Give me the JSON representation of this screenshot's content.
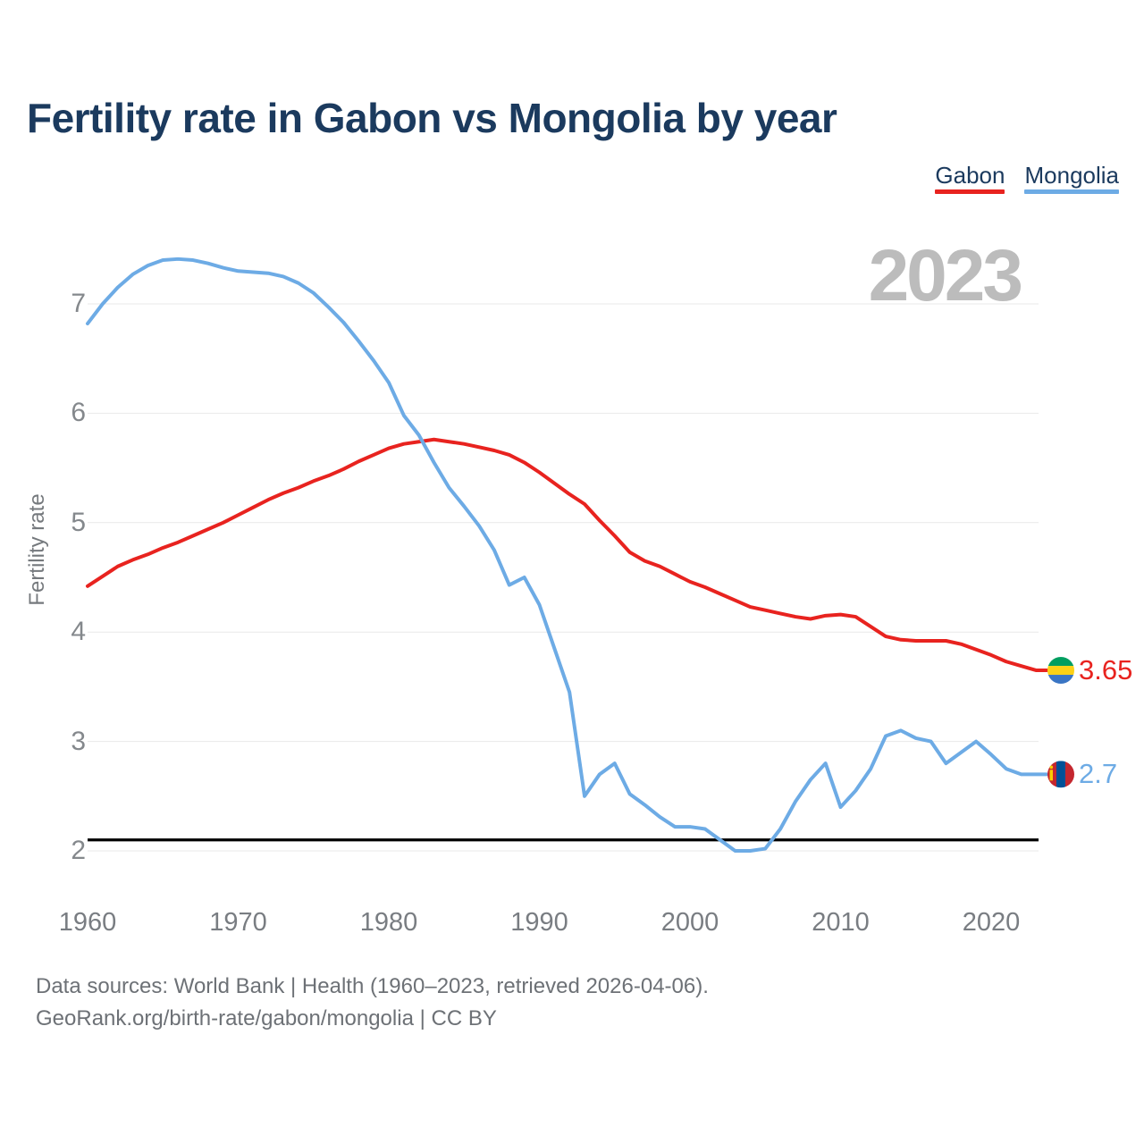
{
  "title": "Fertility rate in Gabon vs Mongolia by year",
  "watermark": "2023",
  "legend": {
    "items": [
      {
        "label": "Gabon",
        "color": "#e8231f"
      },
      {
        "label": "Mongolia",
        "color": "#6dabe5"
      }
    ]
  },
  "y_axis": {
    "label": "Fertility rate",
    "ticks": [
      7,
      6,
      5,
      4,
      3,
      2
    ]
  },
  "x_axis": {
    "ticks": [
      1960,
      1970,
      1980,
      1990,
      2000,
      2010,
      2020
    ]
  },
  "reference_line": {
    "value": 2.1,
    "color": "#000000"
  },
  "end_labels": {
    "gabon": "3.65",
    "mongolia": "2.7"
  },
  "flags": {
    "gabon": {
      "green": "#009e60",
      "yellow": "#fcd116",
      "blue": "#3a75c4"
    },
    "mongolia": {
      "red": "#c4272f",
      "blue": "#015197",
      "soyombo": "#f9cf02"
    }
  },
  "footer": {
    "line1": "Data sources: World Bank | Health (1960–2023, retrieved 2026-04-06).",
    "line2": "GeoRank.org/birth-rate/gabon/mongolia | CC BY"
  },
  "chart_data": {
    "type": "line",
    "title": "Fertility rate in Gabon vs Mongolia by year",
    "xlabel": "",
    "ylabel": "Fertility rate",
    "ylim": [
      1.8,
      7.6
    ],
    "xlim": [
      1960,
      2023
    ],
    "grid": "horizontal",
    "legend_position": "top-right",
    "x": [
      1960,
      1961,
      1962,
      1963,
      1964,
      1965,
      1966,
      1967,
      1968,
      1969,
      1970,
      1971,
      1972,
      1973,
      1974,
      1975,
      1976,
      1977,
      1978,
      1979,
      1980,
      1981,
      1982,
      1983,
      1984,
      1985,
      1986,
      1987,
      1988,
      1989,
      1990,
      1991,
      1992,
      1993,
      1994,
      1995,
      1996,
      1997,
      1998,
      1999,
      2000,
      2001,
      2002,
      2003,
      2004,
      2005,
      2006,
      2007,
      2008,
      2009,
      2010,
      2011,
      2012,
      2013,
      2014,
      2015,
      2016,
      2017,
      2018,
      2019,
      2020,
      2021,
      2022,
      2023
    ],
    "series": [
      {
        "name": "Gabon",
        "color": "#e8231f",
        "final_value": 3.65,
        "values": [
          4.42,
          4.51,
          4.6,
          4.66,
          4.71,
          4.77,
          4.82,
          4.88,
          4.94,
          5.0,
          5.07,
          5.14,
          5.21,
          5.27,
          5.32,
          5.38,
          5.43,
          5.49,
          5.56,
          5.62,
          5.68,
          5.72,
          5.74,
          5.76,
          5.74,
          5.72,
          5.69,
          5.66,
          5.62,
          5.55,
          5.46,
          5.36,
          5.26,
          5.17,
          5.02,
          4.88,
          4.73,
          4.65,
          4.6,
          4.53,
          4.46,
          4.41,
          4.35,
          4.29,
          4.23,
          4.2,
          4.17,
          4.14,
          4.12,
          4.15,
          4.16,
          4.14,
          4.05,
          3.96,
          3.93,
          3.92,
          3.92,
          3.92,
          3.89,
          3.84,
          3.79,
          3.73,
          3.69,
          3.65
        ]
      },
      {
        "name": "Mongolia",
        "color": "#6dabe5",
        "final_value": 2.7,
        "values": [
          6.82,
          7.0,
          7.15,
          7.27,
          7.35,
          7.4,
          7.41,
          7.4,
          7.37,
          7.33,
          7.3,
          7.29,
          7.28,
          7.25,
          7.19,
          7.1,
          6.97,
          6.83,
          6.66,
          6.48,
          6.28,
          5.98,
          5.8,
          5.55,
          5.32,
          5.15,
          4.97,
          4.75,
          4.43,
          4.5,
          4.25,
          3.85,
          3.45,
          2.5,
          2.7,
          2.8,
          2.52,
          2.42,
          2.31,
          2.22,
          2.22,
          2.2,
          2.1,
          2.0,
          2.0,
          2.02,
          2.2,
          2.45,
          2.65,
          2.8,
          2.4,
          2.55,
          2.75,
          3.05,
          3.1,
          3.03,
          3.0,
          2.8,
          2.9,
          3.0,
          2.88,
          2.75,
          2.7,
          2.7
        ]
      }
    ],
    "reference_line_value": 2.1
  }
}
